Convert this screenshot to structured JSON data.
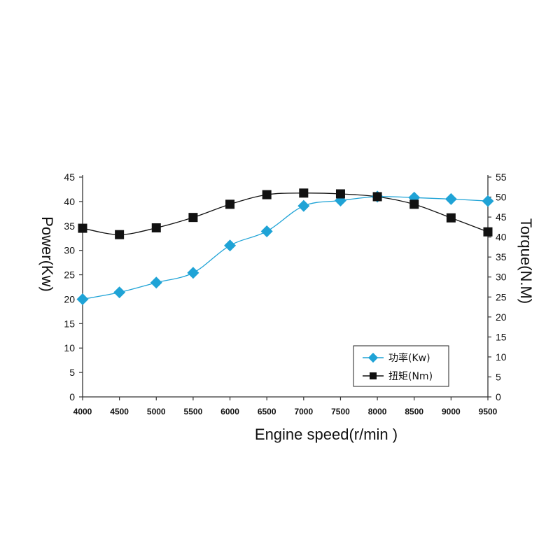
{
  "chart_data": {
    "type": "line",
    "x": [
      4000,
      4500,
      5000,
      5500,
      6000,
      6500,
      7000,
      7500,
      8000,
      8500,
      9000,
      9500
    ],
    "xlabel": "Engine speed(r/min )",
    "ylabel": "Power(Kw)",
    "y2label": "Torque(N.M)",
    "xlim": [
      4000,
      9500
    ],
    "ylim": [
      0,
      45
    ],
    "y2lim": [
      0,
      55
    ],
    "yticks": [
      0,
      5,
      10,
      15,
      20,
      25,
      30,
      35,
      40,
      45
    ],
    "y2ticks": [
      0,
      5,
      10,
      15,
      20,
      25,
      30,
      35,
      40,
      45,
      50,
      55
    ],
    "grid": false,
    "legend_position": "bottom-right",
    "series": [
      {
        "name": "功率(Kw)",
        "axis": "left",
        "marker": "diamond",
        "color": "#1fa3d6",
        "values": [
          20.0,
          21.4,
          23.4,
          25.4,
          31.0,
          33.9,
          39.1,
          40.2,
          41.0,
          40.8,
          40.5,
          40.1
        ]
      },
      {
        "name": "扭矩(Nm)",
        "axis": "right",
        "marker": "square",
        "color": "#111111",
        "values": [
          42.2,
          40.6,
          42.3,
          44.9,
          48.2,
          50.6,
          51.0,
          50.8,
          50.1,
          48.2,
          44.8,
          41.3
        ]
      }
    ]
  }
}
